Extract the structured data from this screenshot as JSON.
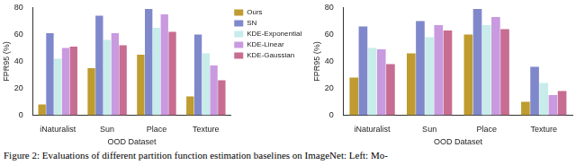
{
  "chart_data": [
    {
      "type": "bar",
      "x_label": "OOD Dataset",
      "y_label": "FPR95 (%)",
      "categories": [
        "iNaturalist",
        "Sun",
        "Place",
        "Texture"
      ],
      "series": [
        {
          "name": "Ours",
          "color": "#bf9b30",
          "values": [
            8,
            35,
            45,
            14
          ]
        },
        {
          "name": "SN",
          "color": "#8088cc",
          "values": [
            61,
            74,
            79,
            60
          ]
        },
        {
          "name": "KDE-Exponential",
          "color": "#c8ecea",
          "values": [
            42,
            56,
            65,
            46
          ]
        },
        {
          "name": "KDE-Linear",
          "color": "#c99ae0",
          "values": [
            50,
            61,
            75,
            37
          ]
        },
        {
          "name": "KDE-Gaussian",
          "color": "#c76d92",
          "values": [
            51,
            52,
            62,
            26
          ]
        }
      ],
      "ylim": [
        0,
        80
      ],
      "yticks": [
        0,
        20,
        40,
        60,
        80
      ],
      "grid": false,
      "legend": "upper right"
    },
    {
      "type": "bar",
      "x_label": "OOD Dataset",
      "y_label": "FPR95 (%)",
      "categories": [
        "iNaturalist",
        "Sun",
        "Place",
        "Texture"
      ],
      "series": [
        {
          "name": "Ours",
          "color": "#bf9b30",
          "values": [
            28,
            46,
            60,
            10
          ]
        },
        {
          "name": "SN",
          "color": "#8088cc",
          "values": [
            66,
            70,
            79,
            36
          ]
        },
        {
          "name": "KDE-Exponential",
          "color": "#c8ecea",
          "values": [
            50,
            58,
            67,
            24
          ]
        },
        {
          "name": "KDE-Linear",
          "color": "#c99ae0",
          "values": [
            49,
            67,
            73,
            15
          ]
        },
        {
          "name": "KDE-Gaussian",
          "color": "#c76d92",
          "values": [
            38,
            63,
            64,
            18
          ]
        }
      ],
      "ylim": [
        0,
        80
      ],
      "yticks": [
        0,
        20,
        40,
        60,
        80
      ],
      "grid": false
    }
  ],
  "caption": "Figure 2: Evaluations of different partition function estimation baselines on ImageNet: Left: Mo-"
}
